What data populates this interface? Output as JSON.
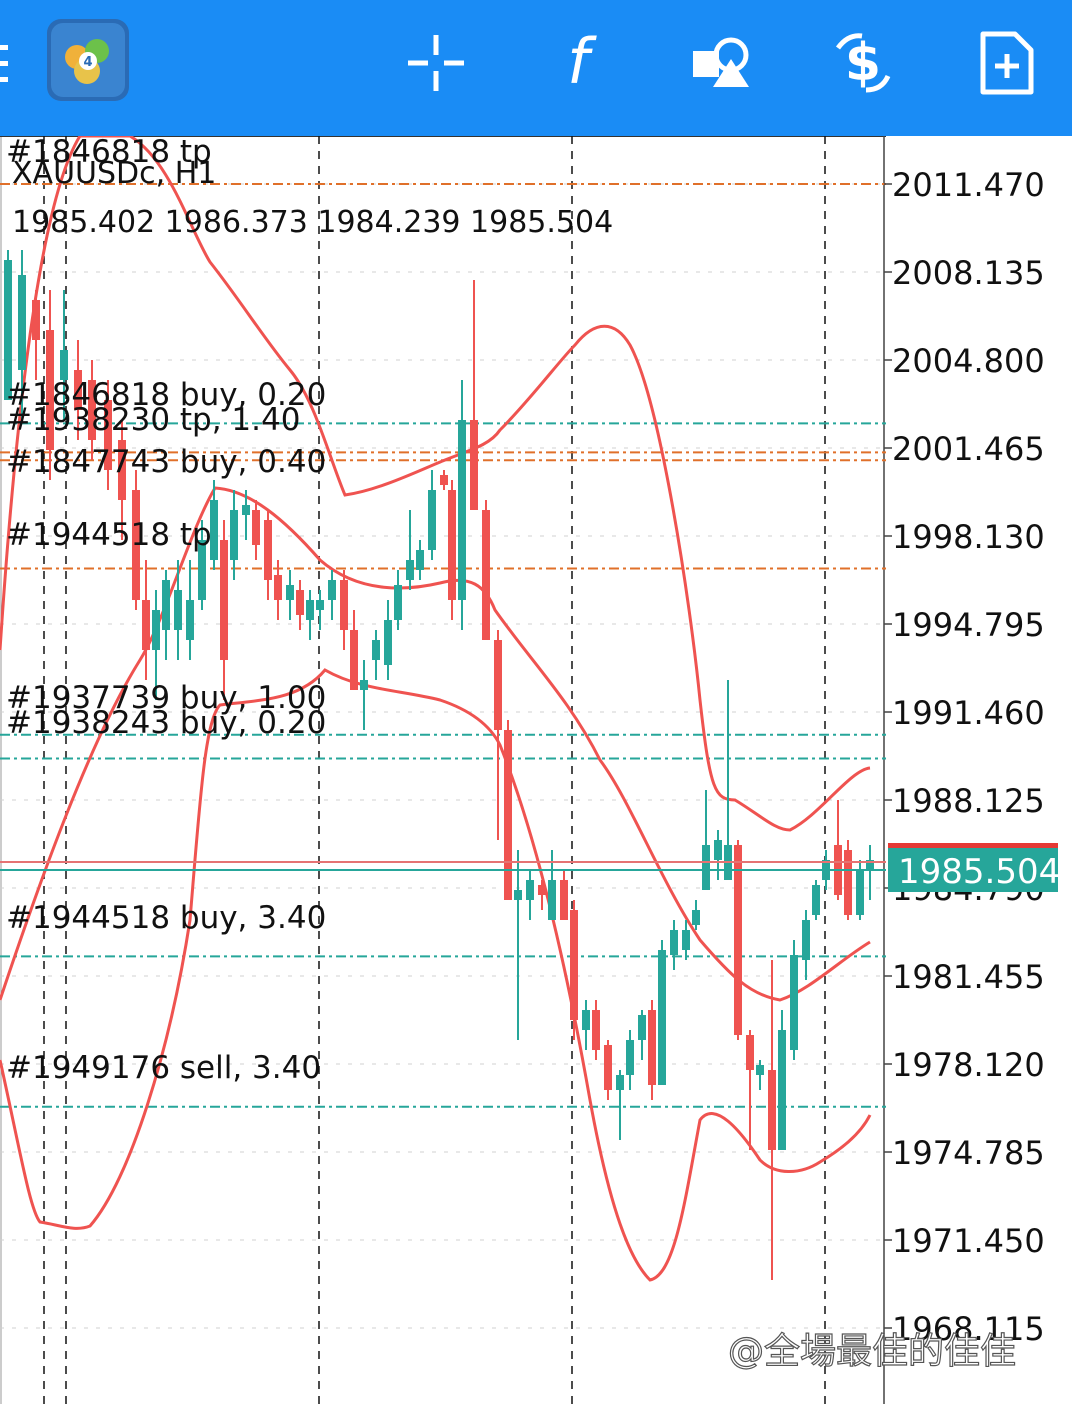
{
  "toolbar": {
    "bg": "#1a8cf5",
    "items": [
      {
        "name": "menu-icon"
      },
      {
        "name": "app-logo-icon"
      },
      {
        "name": "crosshair-icon"
      },
      {
        "name": "indicators-icon"
      },
      {
        "name": "objects-icon"
      },
      {
        "name": "trade-icon"
      },
      {
        "name": "new-order-icon"
      }
    ],
    "indicator_glyph": "f",
    "trade_glyph": "$"
  },
  "header": {
    "symbol": "XAUUSDc, H1",
    "ohlc": "1985.402 1986.373 1984.239 1985.504"
  },
  "price_axis": {
    "labels": [
      "2011.470",
      "2008.135",
      "2004.800",
      "2001.465",
      "1998.130",
      "1994.795",
      "1991.460",
      "1988.125",
      "1984.790",
      "1981.455",
      "1978.120",
      "1974.785",
      "1971.450",
      "1968.115"
    ],
    "current_price": "1985.504",
    "current_price_color": "#26a69a"
  },
  "order_lines": [
    {
      "label": "#1846818 tp",
      "color": "#e0702a",
      "price": 2011.47
    },
    {
      "label": "#1846818 buy, 0.20",
      "color": "#e0702a",
      "price": 2001.3
    },
    {
      "label": "#1938230 tp, 1.40",
      "color": "#26a69a",
      "price": 2002.4
    },
    {
      "label": "#1847743 buy, 0.40",
      "color": "#e0702a",
      "price": 2001.0
    },
    {
      "label": "#1944518 tp",
      "color": "#e0702a",
      "price": 1996.9
    },
    {
      "label": "#1937739 buy, 1.00",
      "color": "#26a69a",
      "price": 1990.6
    },
    {
      "label": "#1938243 buy, 0.20",
      "color": "#26a69a",
      "price": 1989.7
    },
    {
      "label": "#1944518 buy, 3.40",
      "color": "#26a69a",
      "price": 1982.2
    },
    {
      "label": "#1949176 sell, 3.40",
      "color": "#26a69a",
      "price": 1976.5
    }
  ],
  "colors": {
    "bull": "#26a69a",
    "bear": "#ef5350",
    "band": "#ef5350"
  },
  "watermark": "@全場最佳的佳佳"
}
